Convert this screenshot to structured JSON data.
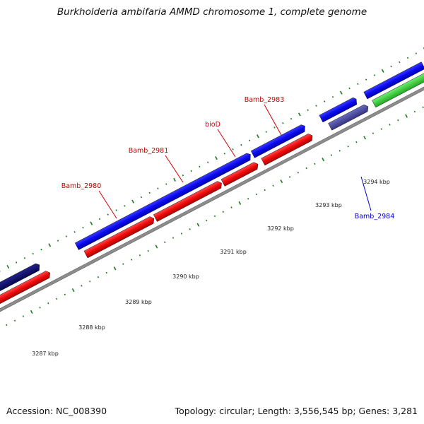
{
  "title": "Burkholderia ambifaria AMMD chromosome 1, complete genome",
  "footer": {
    "accession": "Accession: NC_008390",
    "summary": "Topology: circular; Length: 3,556,545 bp; Genes: 3,281"
  },
  "scale": {
    "unit": "kbp",
    "labels": [
      "3287 kbp",
      "3288 kbp",
      "3289 kbp",
      "3290 kbp",
      "3291 kbp",
      "3292 kbp",
      "3293 kbp",
      "3294 kbp"
    ]
  },
  "genes": [
    {
      "name": "Bamb_2980",
      "color": "#cc0000"
    },
    {
      "name": "Bamb_2981",
      "color": "#cc0000"
    },
    {
      "name": "bioD",
      "color": "#cc0000"
    },
    {
      "name": "Bamb_2983",
      "color": "#cc0000"
    },
    {
      "name": "Bamb_2984",
      "color": "#0000cc"
    }
  ],
  "track_colors": {
    "forward": "#0a0aee",
    "reverse": "#ee0a0a",
    "navy": "#0d0d6e",
    "slate": "#4a4aa0",
    "green": "#33cc33",
    "backbone": "#888888",
    "ticks": "#1a7a1a"
  }
}
